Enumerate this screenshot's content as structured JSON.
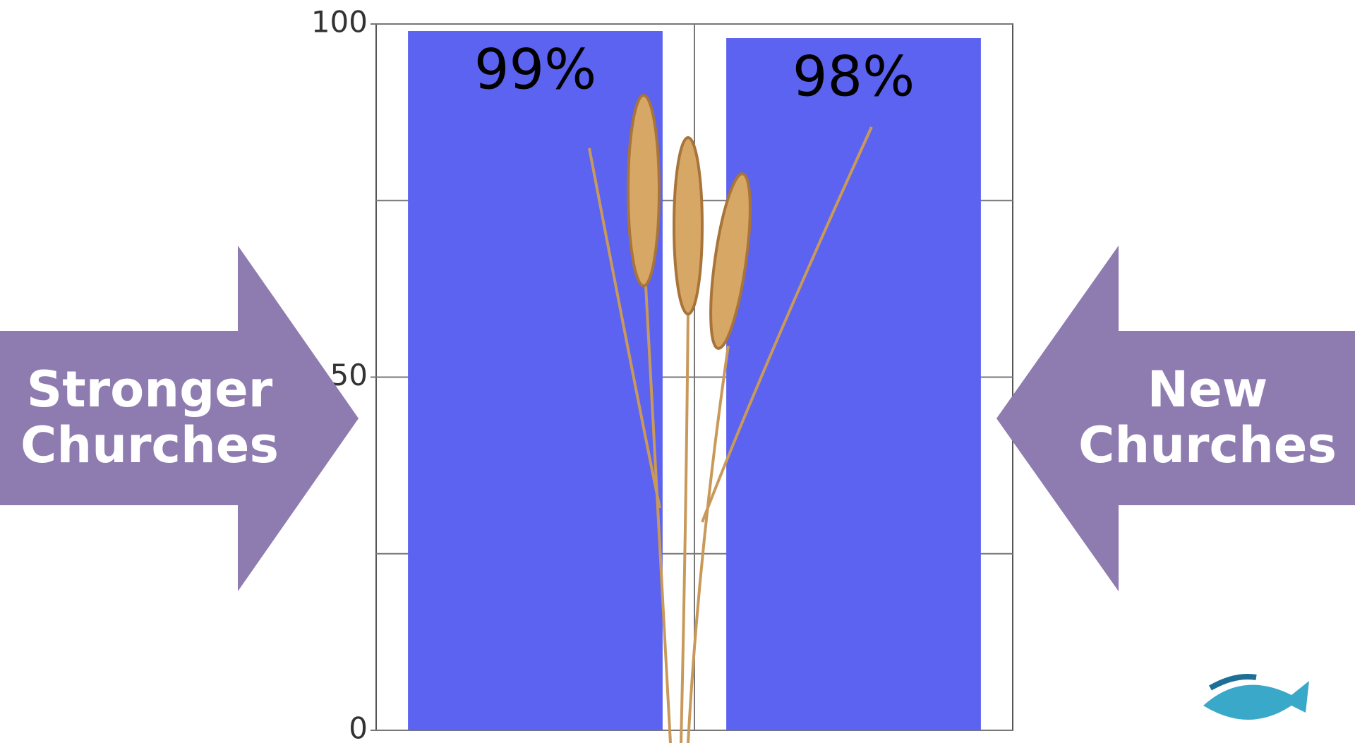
{
  "chart_data": {
    "type": "bar",
    "categories": [
      null,
      null
    ],
    "values": [
      99,
      98
    ],
    "value_labels": [
      "99%",
      "98%"
    ],
    "color": "#5b63f0",
    "ylim": [
      0,
      100
    ],
    "yticks": [
      0,
      50,
      100
    ],
    "minor_yticks": [
      25,
      75
    ],
    "grid": true,
    "annotations": [
      [
        "Stronger",
        "Churches"
      ],
      [
        "New",
        "Churches"
      ]
    ]
  }
}
